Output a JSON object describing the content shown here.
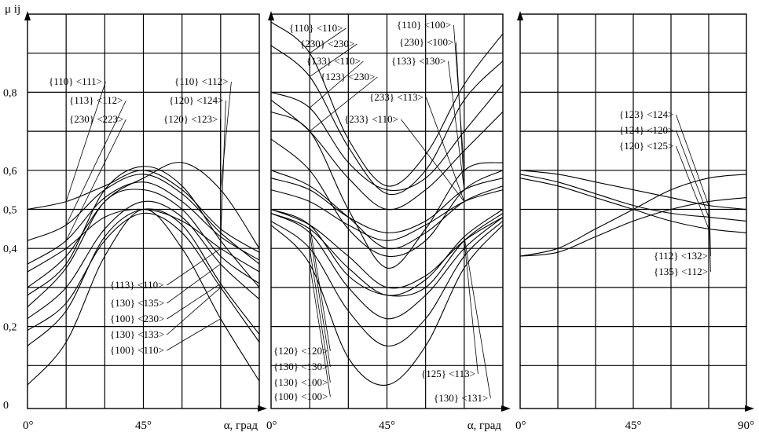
{
  "ylabel": "μ ij",
  "ytick_labels": [
    "0",
    "0,2",
    "0,4",
    "0,5",
    "0,6",
    "0,8"
  ],
  "chart_data": [
    {
      "type": "line",
      "panel": "left",
      "xlabel": "α, град",
      "x_tick_labels": [
        "0°",
        "45°"
      ],
      "xlim": [
        0,
        90
      ],
      "ylim": [
        0,
        1.0
      ],
      "grid": true,
      "series": [
        {
          "name": "{110} <111>",
          "x": [
            0,
            15,
            30,
            45,
            60,
            75,
            90
          ],
          "y": [
            0.5,
            0.52,
            0.56,
            0.6,
            0.55,
            0.45,
            0.39
          ]
        },
        {
          "name": "{113} <112>",
          "x": [
            0,
            15,
            30,
            45,
            60,
            75,
            90
          ],
          "y": [
            0.42,
            0.46,
            0.55,
            0.59,
            0.54,
            0.44,
            0.36
          ]
        },
        {
          "name": "{230} <223>",
          "x": [
            0,
            15,
            30,
            45,
            60,
            75,
            90
          ],
          "y": [
            0.36,
            0.42,
            0.53,
            0.57,
            0.52,
            0.43,
            0.37
          ]
        },
        {
          "name": "{110} <112>",
          "x": [
            0,
            15,
            30,
            45,
            60,
            75,
            90
          ],
          "y": [
            0.3,
            0.38,
            0.52,
            0.58,
            0.62,
            0.55,
            0.4
          ]
        },
        {
          "name": "{120} <124>",
          "x": [
            0,
            15,
            30,
            45,
            60,
            75,
            90
          ],
          "y": [
            0.28,
            0.36,
            0.55,
            0.61,
            0.56,
            0.42,
            0.3
          ]
        },
        {
          "name": "{120} <123>",
          "x": [
            0,
            15,
            30,
            45,
            60,
            75,
            90
          ],
          "y": [
            0.25,
            0.35,
            0.52,
            0.55,
            0.5,
            0.38,
            0.31
          ]
        },
        {
          "name": "{113} <110>",
          "x": [
            0,
            15,
            30,
            45,
            60,
            75,
            90
          ],
          "y": [
            0.34,
            0.4,
            0.48,
            0.5,
            0.47,
            0.4,
            0.34
          ]
        },
        {
          "name": "{130} <135>",
          "x": [
            0,
            15,
            30,
            45,
            60,
            75,
            90
          ],
          "y": [
            0.22,
            0.3,
            0.45,
            0.52,
            0.48,
            0.36,
            0.27
          ]
        },
        {
          "name": "{100} <230>",
          "x": [
            0,
            15,
            30,
            45,
            60,
            75,
            90
          ],
          "y": [
            0.15,
            0.24,
            0.43,
            0.5,
            0.46,
            0.31,
            0.18
          ]
        },
        {
          "name": "{130} <133>",
          "x": [
            0,
            15,
            30,
            45,
            60,
            75,
            90
          ],
          "y": [
            0.19,
            0.26,
            0.42,
            0.49,
            0.44,
            0.3,
            0.16
          ]
        },
        {
          "name": "{100} <110>",
          "x": [
            0,
            15,
            30,
            45,
            60,
            75,
            90
          ],
          "y": [
            0.05,
            0.16,
            0.38,
            0.5,
            0.4,
            0.22,
            0.06
          ]
        }
      ]
    },
    {
      "type": "line",
      "panel": "middle",
      "xlabel": "α, град",
      "x_tick_labels": [
        "0°",
        "45°"
      ],
      "xlim": [
        0,
        90
      ],
      "ylim": [
        0,
        1.0
      ],
      "grid": true,
      "series": [
        {
          "name": "{110} <110>",
          "x": [
            0,
            15,
            30,
            45,
            60,
            75,
            90
          ],
          "y": [
            0.98,
            0.9,
            0.68,
            0.56,
            0.64,
            0.82,
            0.95
          ]
        },
        {
          "name": "{230} <230>",
          "x": [
            0,
            15,
            30,
            45,
            60,
            75,
            90
          ],
          "y": [
            0.92,
            0.84,
            0.66,
            0.54,
            0.6,
            0.78,
            0.88
          ]
        },
        {
          "name": "{133} <110>",
          "x": [
            0,
            15,
            30,
            45,
            60,
            75,
            90
          ],
          "y": [
            0.8,
            0.76,
            0.62,
            0.55,
            0.58,
            0.7,
            0.82
          ]
        },
        {
          "name": "{123} <230>",
          "x": [
            0,
            15,
            30,
            45,
            60,
            75,
            90
          ],
          "y": [
            0.78,
            0.7,
            0.58,
            0.5,
            0.55,
            0.65,
            0.75
          ]
        },
        {
          "name": "{110} <100>",
          "x": [
            0,
            15,
            30,
            45,
            60,
            75,
            90
          ],
          "y": [
            0.75,
            0.7,
            0.5,
            0.35,
            0.45,
            0.6,
            0.62
          ]
        },
        {
          "name": "{230} <100>",
          "x": [
            0,
            15,
            30,
            45,
            60,
            75,
            90
          ],
          "y": [
            0.68,
            0.6,
            0.45,
            0.38,
            0.42,
            0.55,
            0.6
          ]
        },
        {
          "name": "{133} <130>",
          "x": [
            0,
            15,
            30,
            45,
            60,
            75,
            90
          ],
          "y": [
            0.58,
            0.55,
            0.48,
            0.44,
            0.47,
            0.55,
            0.58
          ]
        },
        {
          "name": "{233} <113>",
          "x": [
            0,
            15,
            30,
            45,
            60,
            75,
            90
          ],
          "y": [
            0.55,
            0.52,
            0.46,
            0.42,
            0.46,
            0.52,
            0.55
          ]
        },
        {
          "name": "{233} <110>",
          "x": [
            0,
            15,
            30,
            45,
            60,
            75,
            90
          ],
          "y": [
            0.6,
            0.56,
            0.48,
            0.4,
            0.44,
            0.52,
            0.56
          ]
        },
        {
          "name": "{120} <120>",
          "x": [
            0,
            15,
            30,
            45,
            60,
            75,
            90
          ],
          "y": [
            0.5,
            0.46,
            0.33,
            0.28,
            0.3,
            0.42,
            0.49
          ]
        },
        {
          "name": "{130} <130>",
          "x": [
            0,
            15,
            30,
            45,
            60,
            75,
            90
          ],
          "y": [
            0.49,
            0.44,
            0.3,
            0.22,
            0.28,
            0.4,
            0.48
          ]
        },
        {
          "name": "{130} <100>",
          "x": [
            0,
            15,
            30,
            45,
            60,
            75,
            90
          ],
          "y": [
            0.47,
            0.4,
            0.24,
            0.15,
            0.22,
            0.38,
            0.47
          ]
        },
        {
          "name": "{100} <100>",
          "x": [
            0,
            15,
            30,
            45,
            60,
            75,
            90
          ],
          "y": [
            0.46,
            0.36,
            0.12,
            0.05,
            0.15,
            0.35,
            0.46
          ]
        },
        {
          "name": "{125} <113>",
          "x": [
            0,
            15,
            30,
            45,
            60,
            75,
            90
          ],
          "y": [
            0.5,
            0.46,
            0.38,
            0.3,
            0.33,
            0.42,
            0.48
          ]
        },
        {
          "name": "{130} <131>",
          "x": [
            0,
            15,
            30,
            45,
            60,
            75,
            90
          ],
          "y": [
            0.49,
            0.45,
            0.35,
            0.28,
            0.32,
            0.43,
            0.5
          ]
        }
      ]
    },
    {
      "type": "line",
      "panel": "right",
      "xlabel": "",
      "x_tick_labels": [
        "0°",
        "45°",
        "90°"
      ],
      "xlim": [
        0,
        90
      ],
      "ylim": [
        0,
        1.0
      ],
      "grid": true,
      "series": [
        {
          "name": "{123} <124>",
          "x": [
            0,
            15,
            30,
            45,
            60,
            75,
            90
          ],
          "y": [
            0.6,
            0.59,
            0.57,
            0.55,
            0.53,
            0.51,
            0.5
          ]
        },
        {
          "name": "{124} <120>",
          "x": [
            0,
            15,
            30,
            45,
            60,
            75,
            90
          ],
          "y": [
            0.59,
            0.57,
            0.54,
            0.51,
            0.49,
            0.48,
            0.47
          ]
        },
        {
          "name": "{120} <125>",
          "x": [
            0,
            15,
            30,
            45,
            60,
            75,
            90
          ],
          "y": [
            0.58,
            0.56,
            0.53,
            0.5,
            0.47,
            0.45,
            0.44
          ]
        },
        {
          "name": "{112} <132>",
          "x": [
            0,
            15,
            30,
            45,
            60,
            75,
            90
          ],
          "y": [
            0.38,
            0.4,
            0.45,
            0.5,
            0.55,
            0.58,
            0.59
          ]
        },
        {
          "name": "{135} <112>",
          "x": [
            0,
            15,
            30,
            45,
            60,
            75,
            90
          ],
          "y": [
            0.38,
            0.39,
            0.43,
            0.47,
            0.5,
            0.52,
            0.53
          ]
        }
      ]
    }
  ]
}
